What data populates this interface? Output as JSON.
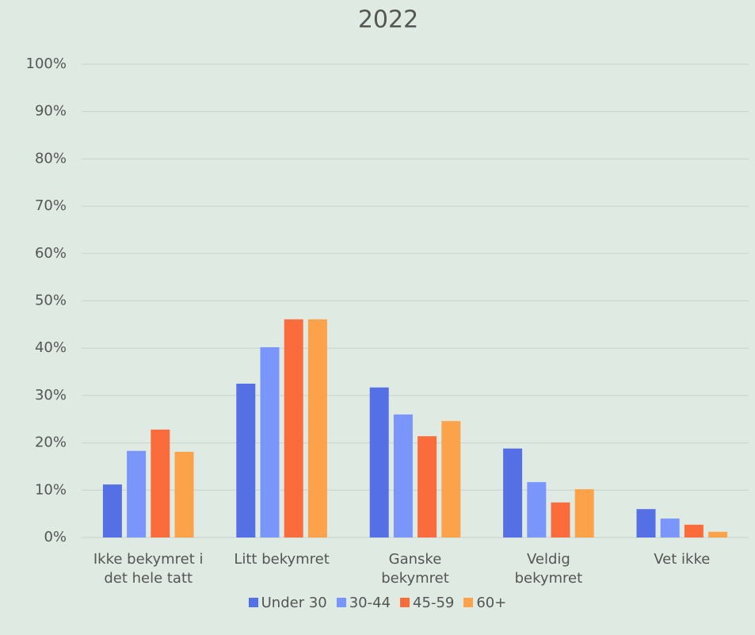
{
  "chart_data": {
    "type": "bar",
    "title": "2022",
    "categories": [
      "Ikke bekymret i\ndet hele tatt",
      "Litt bekymret",
      "Ganske\nbekymret",
      "Veldig\nbekymret",
      "Vet ikke"
    ],
    "series": [
      {
        "name": "Under 30",
        "color": "#5470e4",
        "values": [
          11.2,
          32.5,
          31.7,
          18.8,
          6.0
        ]
      },
      {
        "name": "30-44",
        "color": "#7b96fb",
        "values": [
          18.3,
          40.2,
          26.0,
          11.7,
          4.0
        ]
      },
      {
        "name": "45-59",
        "color": "#fa6c3c",
        "values": [
          22.8,
          46.1,
          21.4,
          7.4,
          2.7
        ]
      },
      {
        "name": "60+",
        "color": "#fba24a",
        "values": [
          18.1,
          46.1,
          24.6,
          10.2,
          1.2
        ]
      }
    ],
    "ylim": [
      0,
      100
    ],
    "yticks": [
      {
        "value": 0,
        "label": "0%"
      },
      {
        "value": 10,
        "label": "10%"
      },
      {
        "value": 20,
        "label": "20%"
      },
      {
        "value": 30,
        "label": "30%"
      },
      {
        "value": 40,
        "label": "40%"
      },
      {
        "value": 50,
        "label": "50%"
      },
      {
        "value": 60,
        "label": "60%"
      },
      {
        "value": 70,
        "label": "70%"
      },
      {
        "value": 80,
        "label": "80%"
      },
      {
        "value": 90,
        "label": "90%"
      },
      {
        "value": 100,
        "label": "100%"
      }
    ],
    "grid": true,
    "legend": "bottom"
  }
}
